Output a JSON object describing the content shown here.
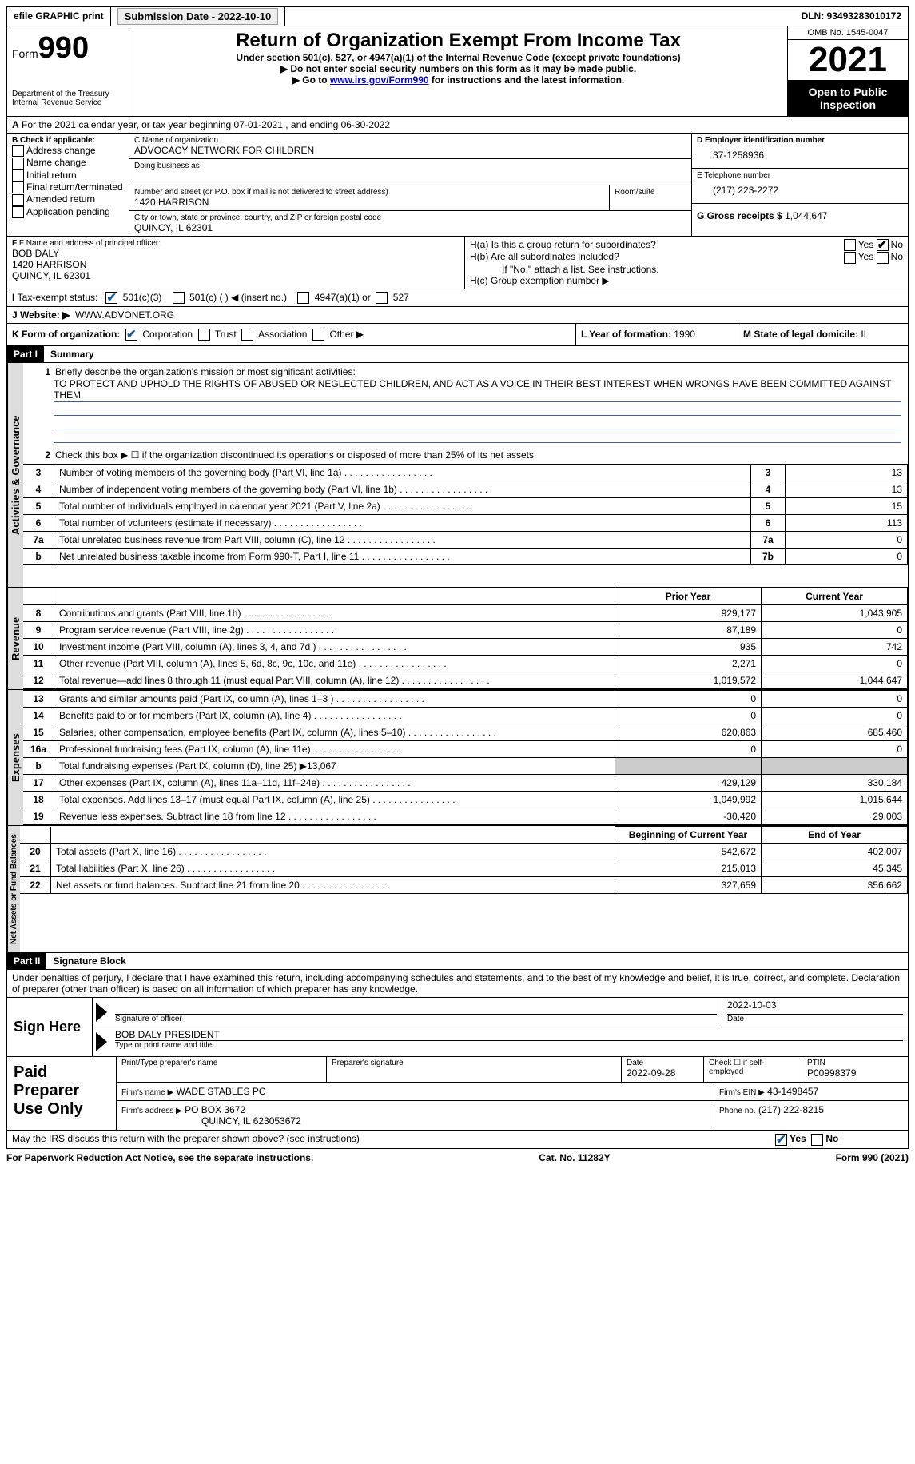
{
  "topbar": {
    "efile": "efile GRAPHIC print",
    "submission_label": "Submission Date - 2022-10-10",
    "dln": "DLN: 93493283010172"
  },
  "header": {
    "form_label": "Form",
    "form_number": "990",
    "dept1": "Department of the Treasury",
    "dept2": "Internal Revenue Service",
    "title": "Return of Organization Exempt From Income Tax",
    "subtitle1": "Under section 501(c), 527, or 4947(a)(1) of the Internal Revenue Code (except private foundations)",
    "subtitle2": "▶ Do not enter social security numbers on this form as it may be made public.",
    "subtitle3_pre": "▶ Go to ",
    "subtitle3_link": "www.irs.gov/Form990",
    "subtitle3_post": " for instructions and the latest information.",
    "omb": "OMB No. 1545-0047",
    "year": "2021",
    "inspect1": "Open to Public",
    "inspect2": "Inspection"
  },
  "lineA": "For the 2021 calendar year, or tax year beginning 07-01-2021   , and ending 06-30-2022",
  "boxB": {
    "label": "B Check if applicable:",
    "opts": [
      "Address change",
      "Name change",
      "Initial return",
      "Final return/terminated",
      "Amended return",
      "Application pending"
    ]
  },
  "boxC": {
    "label": "C Name of organization",
    "name": "ADVOCACY NETWORK FOR CHILDREN",
    "dba_label": "Doing business as",
    "street_label": "Number and street (or P.O. box if mail is not delivered to street address)",
    "room_label": "Room/suite",
    "street": "1420 HARRISON",
    "city_label": "City or town, state or province, country, and ZIP or foreign postal code",
    "city": "QUINCY, IL  62301"
  },
  "boxD": {
    "label": "D Employer identification number",
    "value": "37-1258936"
  },
  "boxE": {
    "label": "E Telephone number",
    "value": "(217) 223-2272"
  },
  "boxG": {
    "label": "G Gross receipts $",
    "value": "1,044,647"
  },
  "boxF": {
    "label": "F Name and address of principal officer:",
    "name": "BOB DALY",
    "street": "1420 HARRISON",
    "city": "QUINCY, IL  62301"
  },
  "boxH": {
    "a_label": "H(a)  Is this a group return for subordinates?",
    "b_label": "H(b)  Are all subordinates included?",
    "b_note": "If \"No,\" attach a list. See instructions.",
    "c_label": "H(c)  Group exemption number ▶",
    "yes": "Yes",
    "no": "No"
  },
  "boxI": {
    "label": "Tax-exempt status:",
    "opts": [
      "501(c)(3)",
      "501(c) (  ) ◀ (insert no.)",
      "4947(a)(1) or",
      "527"
    ]
  },
  "boxJ": {
    "label": "Website: ▶",
    "value": "WWW.ADVONET.ORG"
  },
  "boxK": {
    "label": "K Form of organization:",
    "opts": [
      "Corporation",
      "Trust",
      "Association",
      "Other ▶"
    ]
  },
  "boxL": {
    "label": "L Year of formation:",
    "value": "1990"
  },
  "boxM": {
    "label": "M State of legal domicile:",
    "value": "IL"
  },
  "part1": {
    "hdr": "Part I",
    "title": "Summary",
    "line1_label": "Briefly describe the organization's mission or most significant activities:",
    "mission": "TO PROTECT AND UPHOLD THE RIGHTS OF ABUSED OR NEGLECTED CHILDREN, AND ACT AS A VOICE IN THEIR BEST INTEREST WHEN WRONGS HAVE BEEN COMMITTED AGAINST THEM.",
    "line2": "Check this box ▶ ☐ if the organization discontinued its operations or disposed of more than 25% of its net assets.",
    "vtab_ag": "Activities & Governance",
    "vtab_rev": "Revenue",
    "vtab_exp": "Expenses",
    "vtab_net": "Net Assets or Fund Balances",
    "prior": "Prior Year",
    "current": "Current Year",
    "beg": "Beginning of Current Year",
    "end": "End of Year",
    "rows_ag": [
      {
        "n": "3",
        "d": "Number of voting members of the governing body (Part VI, line 1a)",
        "box": "3",
        "v": "13"
      },
      {
        "n": "4",
        "d": "Number of independent voting members of the governing body (Part VI, line 1b)",
        "box": "4",
        "v": "13"
      },
      {
        "n": "5",
        "d": "Total number of individuals employed in calendar year 2021 (Part V, line 2a)",
        "box": "5",
        "v": "15"
      },
      {
        "n": "6",
        "d": "Total number of volunteers (estimate if necessary)",
        "box": "6",
        "v": "113"
      },
      {
        "n": "7a",
        "d": "Total unrelated business revenue from Part VIII, column (C), line 12",
        "box": "7a",
        "v": "0"
      },
      {
        "n": "b",
        "d": "Net unrelated business taxable income from Form 990-T, Part I, line 11",
        "box": "7b",
        "v": "0"
      }
    ],
    "rows_rev": [
      {
        "n": "8",
        "d": "Contributions and grants (Part VIII, line 1h)",
        "p": "929,177",
        "c": "1,043,905"
      },
      {
        "n": "9",
        "d": "Program service revenue (Part VIII, line 2g)",
        "p": "87,189",
        "c": "0"
      },
      {
        "n": "10",
        "d": "Investment income (Part VIII, column (A), lines 3, 4, and 7d )",
        "p": "935",
        "c": "742"
      },
      {
        "n": "11",
        "d": "Other revenue (Part VIII, column (A), lines 5, 6d, 8c, 9c, 10c, and 11e)",
        "p": "2,271",
        "c": "0"
      },
      {
        "n": "12",
        "d": "Total revenue—add lines 8 through 11 (must equal Part VIII, column (A), line 12)",
        "p": "1,019,572",
        "c": "1,044,647"
      }
    ],
    "rows_exp": [
      {
        "n": "13",
        "d": "Grants and similar amounts paid (Part IX, column (A), lines 1–3 )",
        "p": "0",
        "c": "0"
      },
      {
        "n": "14",
        "d": "Benefits paid to or for members (Part IX, column (A), line 4)",
        "p": "0",
        "c": "0"
      },
      {
        "n": "15",
        "d": "Salaries, other compensation, employee benefits (Part IX, column (A), lines 5–10)",
        "p": "620,863",
        "c": "685,460"
      },
      {
        "n": "16a",
        "d": "Professional fundraising fees (Part IX, column (A), line 11e)",
        "p": "0",
        "c": "0"
      },
      {
        "n": "b",
        "d": "Total fundraising expenses (Part IX, column (D), line 25) ▶13,067",
        "p": "",
        "c": "",
        "shaded": true
      },
      {
        "n": "17",
        "d": "Other expenses (Part IX, column (A), lines 11a–11d, 11f–24e)",
        "p": "429,129",
        "c": "330,184"
      },
      {
        "n": "18",
        "d": "Total expenses. Add lines 13–17 (must equal Part IX, column (A), line 25)",
        "p": "1,049,992",
        "c": "1,015,644"
      },
      {
        "n": "19",
        "d": "Revenue less expenses. Subtract line 18 from line 12",
        "p": "-30,420",
        "c": "29,003"
      }
    ],
    "rows_net": [
      {
        "n": "20",
        "d": "Total assets (Part X, line 16)",
        "p": "542,672",
        "c": "402,007"
      },
      {
        "n": "21",
        "d": "Total liabilities (Part X, line 26)",
        "p": "215,013",
        "c": "45,345"
      },
      {
        "n": "22",
        "d": "Net assets or fund balances. Subtract line 21 from line 20",
        "p": "327,659",
        "c": "356,662"
      }
    ]
  },
  "part2": {
    "hdr": "Part II",
    "title": "Signature Block",
    "decl": "Under penalties of perjury, I declare that I have examined this return, including accompanying schedules and statements, and to the best of my knowledge and belief, it is true, correct, and complete. Declaration of preparer (other than officer) is based on all information of which preparer has any knowledge.",
    "sign_here": "Sign Here",
    "sig_officer": "Signature of officer",
    "sig_date": "2022-10-03",
    "date_label": "Date",
    "officer_name": "BOB DALY  PRESIDENT",
    "name_title_label": "Type or print name and title",
    "paid": "Paid Preparer Use Only",
    "prep_name_label": "Print/Type preparer's name",
    "prep_sig_label": "Preparer's signature",
    "prep_date_label": "Date",
    "prep_date": "2022-09-28",
    "check_if": "Check ☐ if self-employed",
    "ptin_label": "PTIN",
    "ptin": "P00998379",
    "firm_name_label": "Firm's name     ▶",
    "firm_name": "WADE STABLES PC",
    "firm_ein_label": "Firm's EIN ▶",
    "firm_ein": "43-1498457",
    "firm_addr_label": "Firm's address ▶",
    "firm_addr1": "PO BOX 3672",
    "firm_addr2": "QUINCY, IL  623053672",
    "firm_phone_label": "Phone no.",
    "firm_phone": "(217) 222-8215",
    "discuss": "May the IRS discuss this return with the preparer shown above? (see instructions)",
    "yes": "Yes",
    "no": "No"
  },
  "footer": {
    "pra": "For Paperwork Reduction Act Notice, see the separate instructions.",
    "cat": "Cat. No. 11282Y",
    "formrev": "Form 990 (2021)"
  }
}
